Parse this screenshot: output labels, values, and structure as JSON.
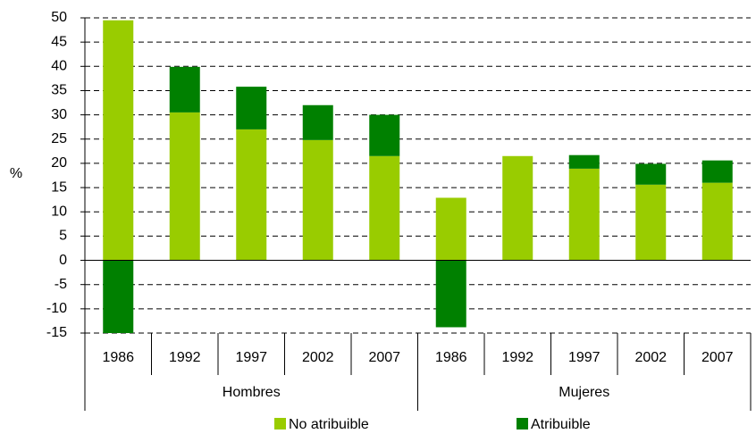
{
  "chart_data": {
    "type": "bar",
    "stacked": true,
    "y_label": "%",
    "categories": [
      "1986",
      "1992",
      "1997",
      "2002",
      "2007",
      "1986",
      "1992",
      "1997",
      "2002",
      "2007"
    ],
    "groups": [
      "Hombres",
      "Mujeres"
    ],
    "series": [
      {
        "name": "No atribuible",
        "color": "#99cc00",
        "values": [
          49.5,
          30.5,
          27,
          24.8,
          21.5,
          12.9,
          21.5,
          18.9,
          15.6,
          16
        ]
      },
      {
        "name": "Atribuible",
        "color": "#008000",
        "values": [
          -15,
          9.4,
          8.8,
          7.2,
          8.5,
          -13.8,
          0,
          2.8,
          4.3,
          4.6
        ]
      }
    ],
    "ylim": [
      -15,
      50
    ],
    "yticks": [
      -15,
      -10,
      -5,
      0,
      5,
      10,
      15,
      20,
      25,
      30,
      35,
      40,
      45,
      50
    ],
    "grid": true,
    "legend": "bottom"
  }
}
